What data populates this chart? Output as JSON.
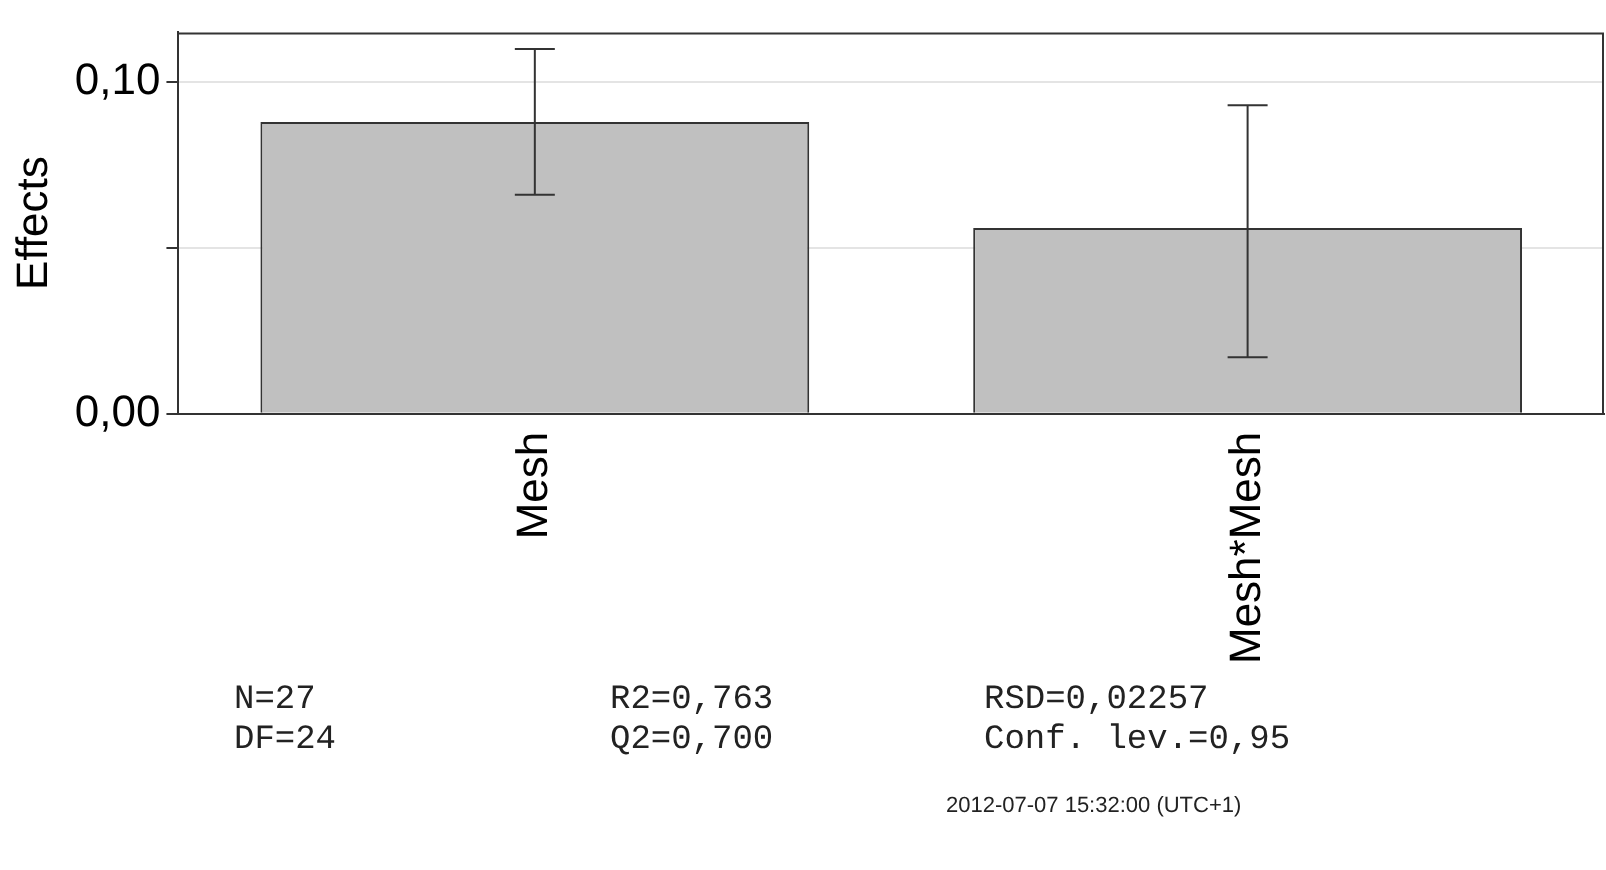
{
  "chart_data": {
    "type": "bar",
    "ylabel": "Effects",
    "categories": [
      "Mesh",
      "Mesh*Mesh"
    ],
    "values": [
      0.088,
      0.056
    ],
    "errors": [
      [
        0.066,
        0.11
      ],
      [
        0.017,
        0.093
      ]
    ],
    "color": "#c0c0c0",
    "ylim": [
      0,
      0.115
    ],
    "yticks": [
      {
        "value": 0,
        "label": "0,00"
      },
      {
        "value": 0.05,
        "label": null
      },
      {
        "value": 0.1,
        "label": "0,10"
      }
    ],
    "grid": "y",
    "annotations": [
      "N=27",
      "R2=0,763",
      "RSD=0,02257",
      "DF=24",
      "Q2=0,700",
      "Conf. lev.=0,95",
      "2012-07-07 15:32:00 (UTC+1)"
    ]
  }
}
